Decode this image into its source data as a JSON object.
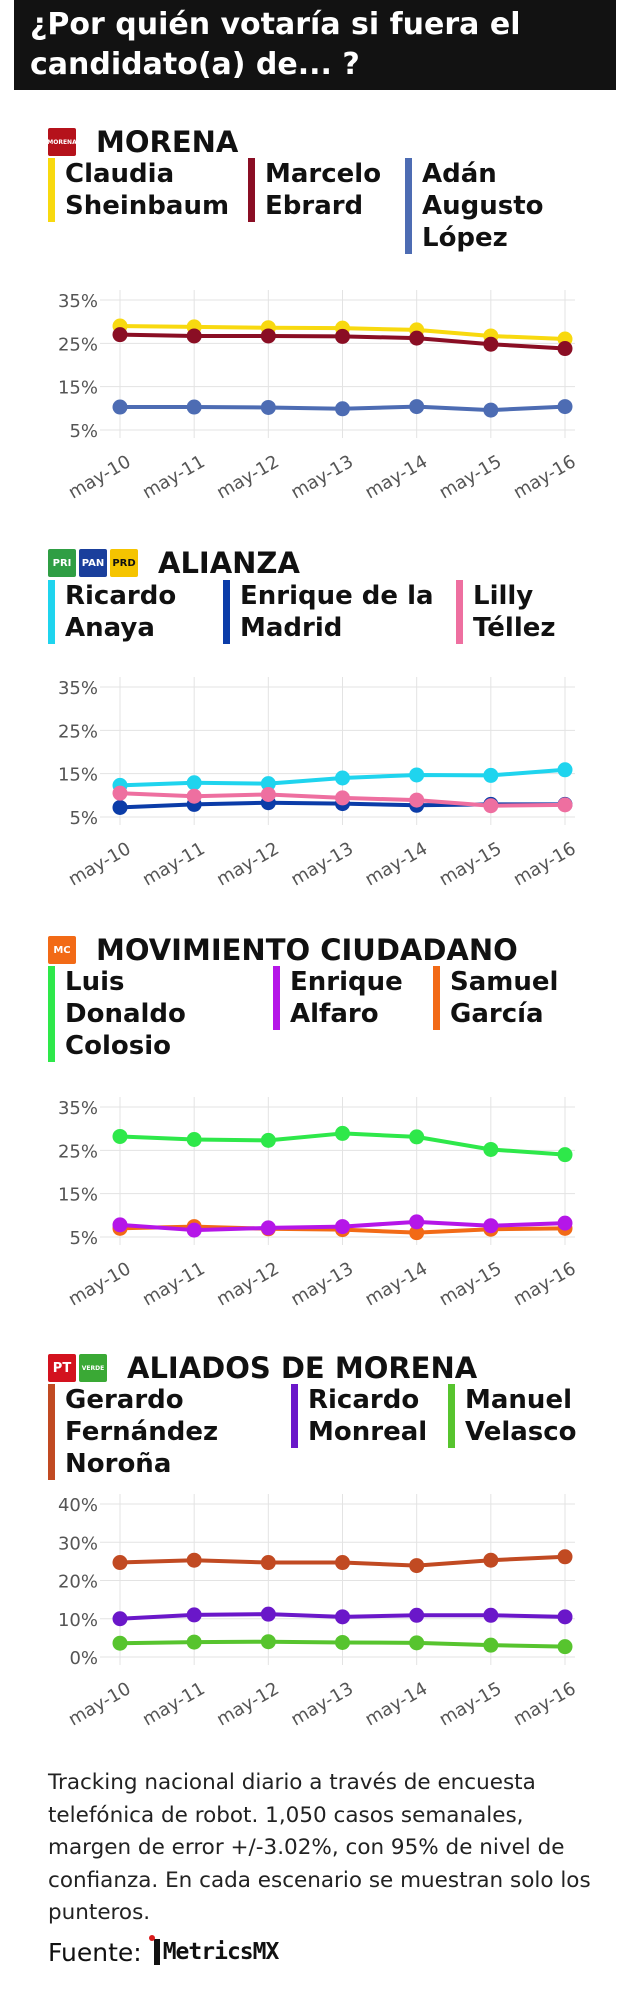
{
  "title_lines": [
    "¿Por quién votaría si fuera el",
    "candidato(a) de... ?"
  ],
  "colors": {
    "sheinbaum": "#f8d90f",
    "ebrard": "#8a0e24",
    "adan": "#4d6cb3",
    "anaya": "#1fd4ee",
    "delamadrid": "#0b3ca8",
    "tellez": "#ee6fa0",
    "colosio": "#2ee84a",
    "alfaro": "#b516e8",
    "garcia": "#f26a16",
    "norona": "#c14a22",
    "monreal": "#6a17c9",
    "velasco": "#57c42e"
  },
  "sections": [
    {
      "party": "MORENA",
      "logos": [
        {
          "name": "morena-logo-icon",
          "text": "MORENA",
          "color": "#b5121b"
        }
      ],
      "candidates": [
        {
          "lines": [
            "Claudia",
            "Sheinbaum"
          ],
          "color": "#f8d90f"
        },
        {
          "lines": [
            "Marcelo",
            "Ebrard"
          ],
          "color": "#8a0e24"
        },
        {
          "lines": [
            "Adán",
            "Augusto",
            "López"
          ],
          "color": "#4d6cb3"
        }
      ]
    },
    {
      "party": "ALIANZA",
      "logos": [
        {
          "name": "pri-logo-icon",
          "text": "PRI",
          "color": "#2f9e44"
        },
        {
          "name": "pan-logo-icon",
          "text": "PAN",
          "color": "#1a3f9c"
        },
        {
          "name": "prd-logo-icon",
          "text": "PRD",
          "color": "#f5c400"
        }
      ],
      "candidates": [
        {
          "lines": [
            "Ricardo",
            "Anaya"
          ],
          "color": "#1fd4ee"
        },
        {
          "lines": [
            "Enrique de la",
            "Madrid"
          ],
          "color": "#0b3ca8"
        },
        {
          "lines": [
            "Lilly",
            "Téllez"
          ],
          "color": "#ee6fa0"
        }
      ]
    },
    {
      "party": "MOVIMIENTO CIUDADANO",
      "logos": [
        {
          "name": "mc-logo-icon",
          "text": "MC",
          "color": "#f26a16"
        }
      ],
      "candidates": [
        {
          "lines": [
            "Luis",
            "Donaldo",
            "Colosio"
          ],
          "color": "#2ee84a"
        },
        {
          "lines": [
            "Enrique",
            "Alfaro"
          ],
          "color": "#b516e8"
        },
        {
          "lines": [
            "Samuel",
            "García"
          ],
          "color": "#f26a16"
        }
      ]
    },
    {
      "party": "ALIADOS DE MORENA",
      "logos": [
        {
          "name": "pt-logo-icon",
          "text": "PT",
          "color": "#d3121e"
        },
        {
          "name": "pvem-logo-icon",
          "text": "VERDE",
          "color": "#3aa935"
        }
      ],
      "candidates": [
        {
          "lines": [
            "Gerardo",
            "Fernández",
            "Noroña"
          ],
          "color": "#c14a22"
        },
        {
          "lines": [
            "Ricardo",
            "Monreal"
          ],
          "color": "#6a17c9"
        },
        {
          "lines": [
            "Manuel",
            "Velasco"
          ],
          "color": "#57c42e"
        }
      ]
    }
  ],
  "chart_data": [
    {
      "type": "line",
      "title": "MORENA",
      "x": [
        "may-10",
        "may-11",
        "may-12",
        "may-13",
        "may-14",
        "may-15",
        "may-16"
      ],
      "yticks": [
        "35%",
        "25%",
        "15%",
        "5%"
      ],
      "ylim": [
        5,
        35
      ],
      "grid": true,
      "series": [
        {
          "name": "Claudia Sheinbaum",
          "color": "#f8d90f",
          "values": [
            29,
            28.8,
            28.6,
            28.5,
            28.1,
            26.7,
            26
          ]
        },
        {
          "name": "Marcelo Ebrard",
          "color": "#8a0e24",
          "values": [
            27,
            26.7,
            26.7,
            26.6,
            26.2,
            24.8,
            23.8
          ]
        },
        {
          "name": "Adán Augusto López",
          "color": "#4d6cb3",
          "values": [
            10.3,
            10.3,
            10.2,
            9.9,
            10.4,
            9.6,
            10.4
          ]
        }
      ]
    },
    {
      "type": "line",
      "title": "ALIANZA",
      "x": [
        "may-10",
        "may-11",
        "may-12",
        "may-13",
        "may-14",
        "may-15",
        "may-16"
      ],
      "yticks": [
        "35%",
        "25%",
        "15%",
        "5%"
      ],
      "ylim": [
        5,
        35
      ],
      "grid": true,
      "series": [
        {
          "name": "Ricardo Anaya",
          "color": "#1fd4ee",
          "values": [
            12.3,
            12.9,
            12.7,
            14,
            14.7,
            14.6,
            15.9
          ]
        },
        {
          "name": "Enrique de la Madrid",
          "color": "#0b3ca8",
          "values": [
            7.2,
            7.9,
            8.3,
            8.1,
            7.7,
            7.9,
            7.9
          ]
        },
        {
          "name": "Lilly Téllez",
          "color": "#ee6fa0",
          "values": [
            10.5,
            9.8,
            10.2,
            9.4,
            8.9,
            7.6,
            7.8
          ]
        }
      ]
    },
    {
      "type": "line",
      "title": "MOVIMIENTO CIUDADANO",
      "x": [
        "may-10",
        "may-11",
        "may-12",
        "may-13",
        "may-14",
        "may-15",
        "may-16"
      ],
      "yticks": [
        "35%",
        "25%",
        "15%",
        "5%"
      ],
      "ylim": [
        5,
        35
      ],
      "grid": true,
      "series": [
        {
          "name": "Luis Donaldo Colosio",
          "color": "#2ee84a",
          "values": [
            28.2,
            27.5,
            27.3,
            28.9,
            28.1,
            25.2,
            24
          ]
        },
        {
          "name": "Samuel García",
          "color": "#f26a16",
          "values": [
            7,
            7.4,
            6.9,
            6.7,
            6,
            6.8,
            7
          ]
        },
        {
          "name": "Enrique Alfaro",
          "color": "#b516e8",
          "values": [
            7.8,
            6.6,
            7.1,
            7.4,
            8.5,
            7.6,
            8.2
          ]
        }
      ]
    },
    {
      "type": "line",
      "title": "ALIADOS DE MORENA",
      "x": [
        "may-10",
        "may-11",
        "may-12",
        "may-13",
        "may-14",
        "may-15",
        "may-16"
      ],
      "yticks": [
        "40%",
        "30%",
        "20%",
        "10%",
        "0%"
      ],
      "ylim": [
        0,
        40
      ],
      "grid": true,
      "series": [
        {
          "name": "Gerardo Fernández Noroña",
          "color": "#c14a22",
          "values": [
            24.7,
            25.3,
            24.7,
            24.7,
            23.9,
            25.3,
            26.2
          ]
        },
        {
          "name": "Ricardo Monreal",
          "color": "#6a17c9",
          "values": [
            10,
            11,
            11.2,
            10.5,
            10.9,
            10.9,
            10.5
          ]
        },
        {
          "name": "Manuel Velasco",
          "color": "#57c42e",
          "values": [
            3.6,
            3.9,
            4,
            3.8,
            3.7,
            3.1,
            2.7
          ]
        }
      ]
    }
  ],
  "footnote": "Tracking nacional diario a través de encuesta telefónica de robot. 1,050 casos semanales, margen de error +/-3.02%, con 95% de nivel de confianza. En cada escenario se muestran solo los punteros.",
  "source": {
    "label": "Fuente:",
    "brand": "MetricsMX"
  }
}
